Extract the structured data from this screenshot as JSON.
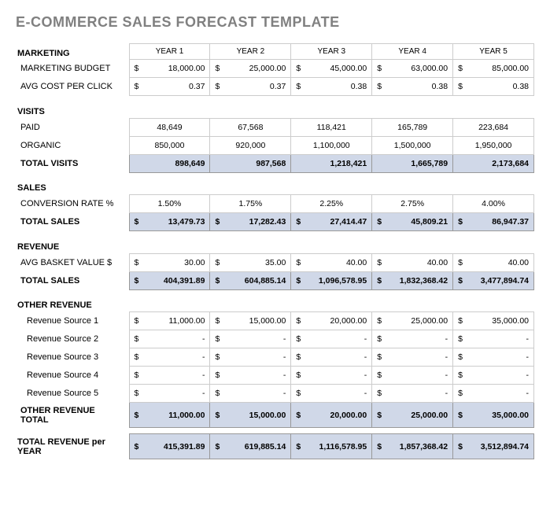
{
  "title": "E-COMMERCE SALES FORECAST TEMPLATE",
  "years": [
    "YEAR 1",
    "YEAR 2",
    "YEAR 3",
    "YEAR 4",
    "YEAR 5"
  ],
  "sections": {
    "marketing": {
      "header": "MARKETING",
      "rows": [
        {
          "label": "MARKETING BUDGET",
          "dollar": true,
          "values": [
            "18,000.00",
            "25,000.00",
            "45,000.00",
            "63,000.00",
            "85,000.00"
          ]
        },
        {
          "label": "AVG COST PER CLICK",
          "dollar": true,
          "values": [
            "0.37",
            "0.37",
            "0.38",
            "0.38",
            "0.38"
          ]
        }
      ]
    },
    "visits": {
      "header": "VISITS",
      "rows": [
        {
          "label": "PAID",
          "dollar": false,
          "values": [
            "48,649",
            "67,568",
            "118,421",
            "165,789",
            "223,684"
          ]
        },
        {
          "label": "ORGANIC",
          "dollar": false,
          "values": [
            "850,000",
            "920,000",
            "1,100,000",
            "1,500,000",
            "1,950,000"
          ]
        }
      ],
      "total": {
        "label": "TOTAL VISITS",
        "dollar": false,
        "values": [
          "898,649",
          "987,568",
          "1,218,421",
          "1,665,789",
          "2,173,684"
        ]
      }
    },
    "sales": {
      "header": "SALES",
      "rows": [
        {
          "label": "CONVERSION RATE %",
          "dollar": false,
          "values": [
            "1.50%",
            "1.75%",
            "2.25%",
            "2.75%",
            "4.00%"
          ]
        }
      ],
      "total": {
        "label": "TOTAL SALES",
        "dollar": true,
        "values": [
          "13,479.73",
          "17,282.43",
          "27,414.47",
          "45,809.21",
          "86,947.37"
        ]
      }
    },
    "revenue": {
      "header": "REVENUE",
      "rows": [
        {
          "label": "AVG BASKET VALUE $",
          "dollar": true,
          "values": [
            "30.00",
            "35.00",
            "40.00",
            "40.00",
            "40.00"
          ]
        }
      ],
      "total": {
        "label": "TOTAL SALES",
        "dollar": true,
        "values": [
          "404,391.89",
          "604,885.14",
          "1,096,578.95",
          "1,832,368.42",
          "3,477,894.74"
        ]
      }
    },
    "other": {
      "header": "OTHER REVENUE",
      "rows": [
        {
          "label": "Revenue Source 1",
          "dollar": true,
          "values": [
            "11,000.00",
            "15,000.00",
            "20,000.00",
            "25,000.00",
            "35,000.00"
          ]
        },
        {
          "label": "Revenue Source 2",
          "dollar": true,
          "values": [
            "-",
            "-",
            "-",
            "-",
            "-"
          ]
        },
        {
          "label": "Revenue Source 3",
          "dollar": true,
          "values": [
            "-",
            "-",
            "-",
            "-",
            "-"
          ]
        },
        {
          "label": "Revenue Source 4",
          "dollar": true,
          "values": [
            "-",
            "-",
            "-",
            "-",
            "-"
          ]
        },
        {
          "label": "Revenue Source 5",
          "dollar": true,
          "values": [
            "-",
            "-",
            "-",
            "-",
            "-"
          ]
        }
      ],
      "total": {
        "label": "OTHER REVENUE TOTAL",
        "dollar": true,
        "values": [
          "11,000.00",
          "15,000.00",
          "20,000.00",
          "25,000.00",
          "35,000.00"
        ]
      }
    },
    "grand": {
      "label": "TOTAL REVENUE per YEAR",
      "dollar": true,
      "values": [
        "415,391.89",
        "619,885.14",
        "1,116,578.95",
        "1,857,368.42",
        "3,512,894.74"
      ]
    }
  },
  "colors": {
    "title": "#808080",
    "border": "#cccccc",
    "total_bg": "#d0d8e8",
    "text": "#000000",
    "bg": "#ffffff"
  }
}
